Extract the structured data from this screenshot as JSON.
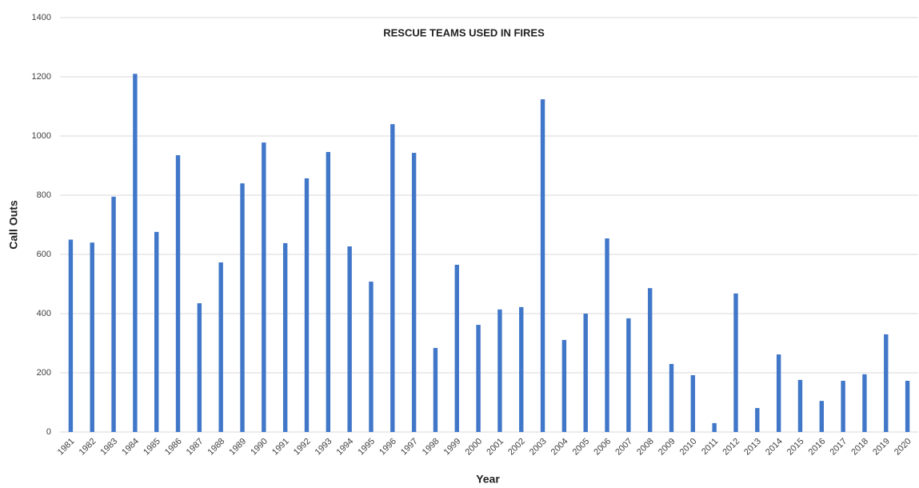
{
  "chart_data": {
    "type": "bar",
    "title": "RESCUE TEAMS USED IN FIRES",
    "x_label": "Year",
    "y_label": "Call Outs",
    "categories": [
      "1981",
      "1982",
      "1983",
      "1984",
      "1985",
      "1986",
      "1987",
      "1988",
      "1989",
      "1990",
      "1991",
      "1992",
      "1993",
      "1994",
      "1995",
      "1996",
      "1997",
      "1998",
      "1999",
      "2000",
      "2001",
      "2002",
      "2003",
      "2004",
      "2005",
      "2006",
      "2007",
      "2008",
      "2009",
      "2010",
      "2011",
      "2012",
      "2013",
      "2014",
      "2015",
      "2016",
      "2017",
      "2018",
      "2019",
      "2020"
    ],
    "values": [
      650,
      640,
      795,
      1210,
      676,
      935,
      435,
      573,
      840,
      978,
      638,
      857,
      946,
      627,
      508,
      1040,
      943,
      284,
      565,
      362,
      414,
      422,
      1124,
      311,
      400,
      654,
      384,
      486,
      230,
      192,
      30,
      468,
      81,
      262,
      176,
      105,
      173,
      195,
      330,
      173
    ],
    "color": "#4177c8",
    "ylim": [
      0,
      1400
    ],
    "yticks": [
      0,
      200,
      400,
      600,
      800,
      1000,
      1200,
      1400
    ],
    "grid": true
  }
}
